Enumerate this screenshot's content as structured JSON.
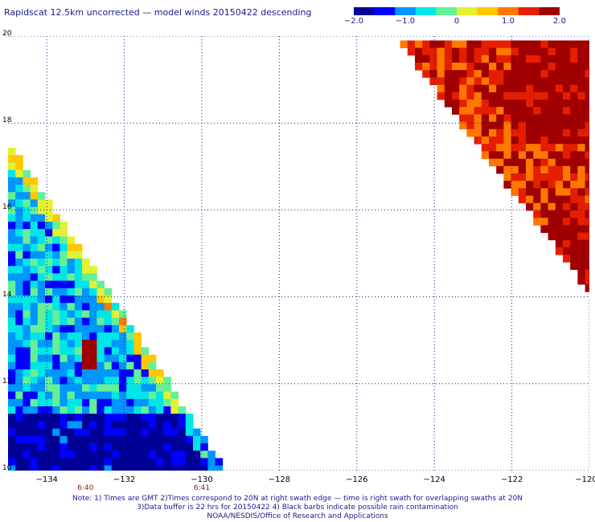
{
  "title": "Rapidscat 12.5km uncorrected — model winds 20150422 descending",
  "colorbar": {
    "ticks": [
      "−2.0",
      "−1.0",
      "0",
      "1.0",
      "2.0"
    ],
    "tick_values": [
      -2.0,
      -1.0,
      0,
      1.0,
      2.0
    ],
    "colors": [
      "#000096",
      "#0000ff",
      "#0096ff",
      "#00e6e6",
      "#64f096",
      "#e6f032",
      "#ffc800",
      "#ff7800",
      "#e61e00",
      "#a00000"
    ]
  },
  "map": {
    "lon_range": [
      -135,
      -120
    ],
    "lat_range": [
      10,
      20
    ],
    "x_ticks": [
      "−134",
      "−132",
      "−130",
      "−128",
      "−126",
      "−124",
      "−122",
      "−120"
    ],
    "x_tick_values": [
      -134,
      -132,
      -130,
      -128,
      -126,
      -124,
      -122,
      -120
    ],
    "y_ticks": [
      "20",
      "18",
      "16",
      "14",
      "12",
      "10"
    ],
    "y_tick_values": [
      20,
      18,
      16,
      14,
      12,
      10
    ],
    "time_labels": [
      {
        "text": "6:40",
        "lon": -133
      },
      {
        "text": "6:41",
        "lon": -130
      }
    ],
    "swaths": [
      {
        "name": "west",
        "mean_diff": -0.8,
        "anomaly_lon": -133,
        "anomaly_lat": 12.7
      },
      {
        "name": "east",
        "mean_diff": 1.4
      }
    ]
  },
  "notes": [
    "Note: 1) Times are GMT 2)Times correspond to 20N at right swath edge — time is right swath for overlapping swaths at 20N",
    "3)Data buffer is 22 hrs for 20150422 4) Black barbs indicate possible rain contamination",
    "NOAA/NESDIS/Office of Research and Applications"
  ]
}
